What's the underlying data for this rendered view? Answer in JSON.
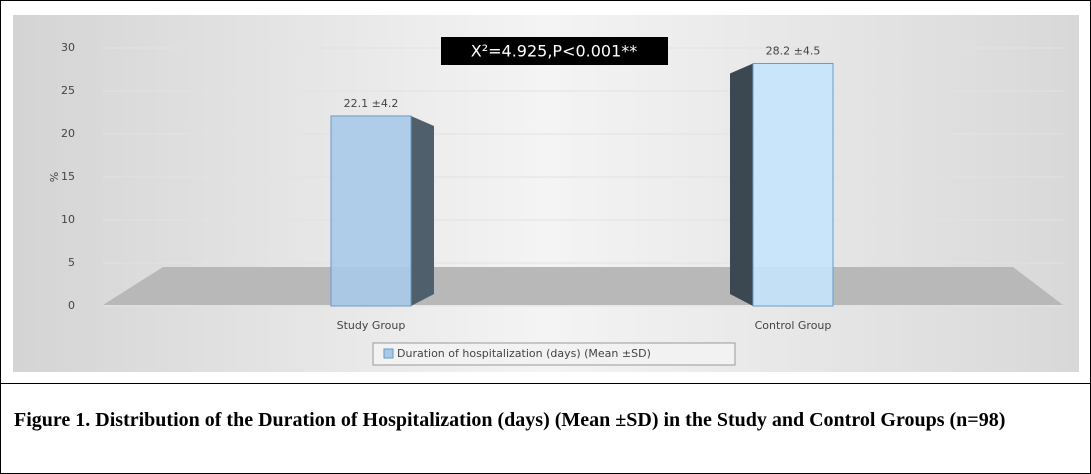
{
  "chart_data": {
    "type": "bar3d",
    "annotation": "X²=4.925,P<0.001**",
    "y_label": "%",
    "categories": [
      "Study Group",
      "Control Group"
    ],
    "series": [
      {
        "name": "Duration of hospitalization (days) (Mean ±SD)",
        "colors": [
          "#a9c9e8",
          "#c4e4fc"
        ],
        "values": [
          22.1,
          28.2
        ],
        "value_labels": [
          "22.1 ±4.2",
          "28.2 ±4.5"
        ]
      }
    ],
    "ylim": [
      0,
      30
    ],
    "yticks": [
      0,
      5,
      10,
      15,
      20,
      25,
      30
    ],
    "grid": true,
    "legend": "bottom"
  },
  "caption": "Figure 1. Distribution of the Duration of Hospitalization (days) (Mean ±SD) in the Study and Control Groups (n=98)"
}
